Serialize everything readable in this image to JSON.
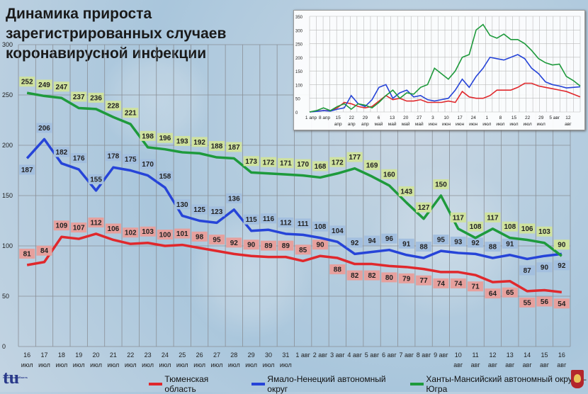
{
  "title": "Динамика прироста зарегистрированных случаев коронавирусной инфекции",
  "colors": {
    "red": "#e0282c",
    "blue": "#2644d8",
    "green": "#1e9a3c",
    "red_label": "#e6a09d",
    "blue_label": "#a3bfdf",
    "green_label": "#cfe29e"
  },
  "legend": [
    "Тюменская область",
    "Ямало-Ненецкий автономный округ",
    "Ханты-Мансийский автономный округ — Югра"
  ],
  "logo_text": "tu",
  "chart_data": [
    {
      "type": "line",
      "ylim": [
        0,
        300
      ],
      "yticks": [
        0,
        50,
        100,
        150,
        200,
        250,
        300
      ],
      "grid": true,
      "legend_position": "bottom",
      "data_labels": true,
      "categories": [
        [
          "16",
          "июл"
        ],
        [
          "17",
          "июл"
        ],
        [
          "18",
          "июл"
        ],
        [
          "19",
          "июл"
        ],
        [
          "20",
          "июл"
        ],
        [
          "21",
          "июл"
        ],
        [
          "22",
          "июл"
        ],
        [
          "23",
          "июл"
        ],
        [
          "24",
          "июл"
        ],
        [
          "25",
          "июл"
        ],
        [
          "26",
          "июл"
        ],
        [
          "27",
          "июл"
        ],
        [
          "28",
          "июл"
        ],
        [
          "29",
          "июл"
        ],
        [
          "30",
          "июл"
        ],
        [
          "31",
          "июл"
        ],
        [
          "1 авг",
          ""
        ],
        [
          "2 авг",
          ""
        ],
        [
          "3 авг",
          ""
        ],
        [
          "4 авг",
          ""
        ],
        [
          "5 авг",
          ""
        ],
        [
          "6 авг",
          ""
        ],
        [
          "7 авг",
          ""
        ],
        [
          "8 авг",
          ""
        ],
        [
          "9 авг",
          ""
        ],
        [
          "10",
          "авг"
        ],
        [
          "11",
          "авг"
        ],
        [
          "12",
          "авг"
        ],
        [
          "13",
          "авг"
        ],
        [
          "14",
          "авг"
        ],
        [
          "15",
          "авг"
        ],
        [
          "16",
          "авг"
        ]
      ],
      "series": [
        {
          "name": "Тюменская область",
          "color": "red",
          "values": [
            81,
            84,
            109,
            107,
            112,
            106,
            102,
            103,
            100,
            101,
            98,
            95,
            92,
            90,
            89,
            89,
            85,
            90,
            88,
            82,
            82,
            80,
            79,
            77,
            74,
            74,
            71,
            64,
            65,
            55,
            56,
            54
          ]
        },
        {
          "name": "Ямало-Ненецкий автономный округ",
          "color": "blue",
          "values": [
            187,
            206,
            182,
            176,
            155,
            178,
            175,
            170,
            158,
            130,
            125,
            123,
            136,
            115,
            116,
            112,
            111,
            108,
            104,
            92,
            94,
            96,
            91,
            88,
            95,
            93,
            92,
            88,
            91,
            87,
            90,
            92
          ]
        },
        {
          "name": "Ханты-Мансийский автономный округ — Югра",
          "color": "green",
          "values": [
            252,
            249,
            247,
            237,
            236,
            228,
            221,
            198,
            196,
            193,
            192,
            188,
            187,
            173,
            172,
            171,
            170,
            168,
            172,
            177,
            169,
            160,
            143,
            127,
            150,
            117,
            108,
            117,
            108,
            106,
            103,
            90
          ]
        }
      ]
    },
    {
      "type": "line",
      "ylim": [
        0,
        350
      ],
      "yticks": [
        0,
        50,
        100,
        150,
        200,
        250,
        300,
        350
      ],
      "grid": true,
      "xticks": [
        [
          "1 апр",
          ""
        ],
        [
          "8 апр",
          ""
        ],
        [
          "15",
          "апр"
        ],
        [
          "22",
          "апр"
        ],
        [
          "29",
          "апр"
        ],
        [
          "6",
          "май"
        ],
        [
          "13",
          "май"
        ],
        [
          "20",
          "май"
        ],
        [
          "27",
          "май"
        ],
        [
          "3",
          "июн"
        ],
        [
          "10",
          "июн"
        ],
        [
          "17",
          "июн"
        ],
        [
          "24",
          "июн"
        ],
        [
          "1",
          "июл"
        ],
        [
          "8",
          "июл"
        ],
        [
          "15",
          "июл"
        ],
        [
          "22",
          "июл"
        ],
        [
          "29",
          "июл"
        ],
        [
          "5 авг",
          ""
        ],
        [
          "12",
          "авг"
        ]
      ],
      "series": [
        {
          "color": "red",
          "values": [
            0,
            3,
            5,
            5,
            15,
            35,
            30,
            20,
            15,
            20,
            40,
            60,
            45,
            50,
            40,
            40,
            45,
            35,
            35,
            35,
            40,
            35,
            75,
            55,
            50,
            50,
            60,
            80,
            80,
            80,
            90,
            105,
            105,
            95,
            90,
            85,
            80,
            75,
            65,
            55
          ]
        },
        {
          "color": "blue",
          "values": [
            0,
            2,
            5,
            3,
            10,
            15,
            60,
            30,
            20,
            45,
            90,
            100,
            50,
            70,
            80,
            55,
            60,
            45,
            40,
            45,
            50,
            80,
            120,
            90,
            130,
            160,
            200,
            195,
            190,
            200,
            210,
            195,
            160,
            140,
            110,
            100,
            95,
            88,
            90,
            92
          ]
        },
        {
          "color": "green",
          "values": [
            0,
            5,
            15,
            5,
            20,
            30,
            10,
            30,
            25,
            15,
            35,
            60,
            80,
            50,
            70,
            65,
            90,
            100,
            160,
            140,
            120,
            150,
            200,
            210,
            300,
            320,
            280,
            270,
            285,
            265,
            265,
            250,
            225,
            195,
            180,
            172,
            175,
            130,
            115,
            95
          ]
        }
      ]
    }
  ]
}
